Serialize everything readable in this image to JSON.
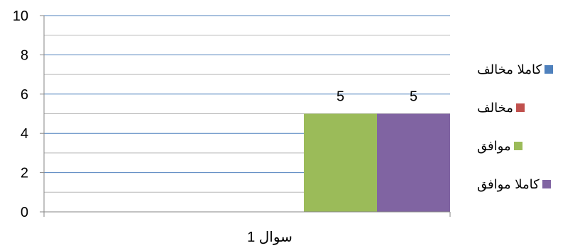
{
  "chart_data": {
    "type": "bar",
    "categories": [
      "سوال 1"
    ],
    "series": [
      {
        "name": "كاملا مخالف",
        "values": [
          0
        ],
        "color": "#4F81BD"
      },
      {
        "name": "مخالف",
        "values": [
          0
        ],
        "color": "#C0504D"
      },
      {
        "name": "موافق",
        "values": [
          5
        ],
        "color": "#9BBB59"
      },
      {
        "name": "كاملا موافق",
        "values": [
          5
        ],
        "color": "#8064A2"
      }
    ],
    "data_labels": [
      "",
      "",
      "5",
      "5"
    ],
    "ylim": [
      0,
      10
    ],
    "yticks": [
      "0",
      "2",
      "4",
      "6",
      "8",
      "10"
    ],
    "title": "",
    "xlabel": "",
    "ylabel": "",
    "grid": true,
    "legend_position": "right"
  }
}
